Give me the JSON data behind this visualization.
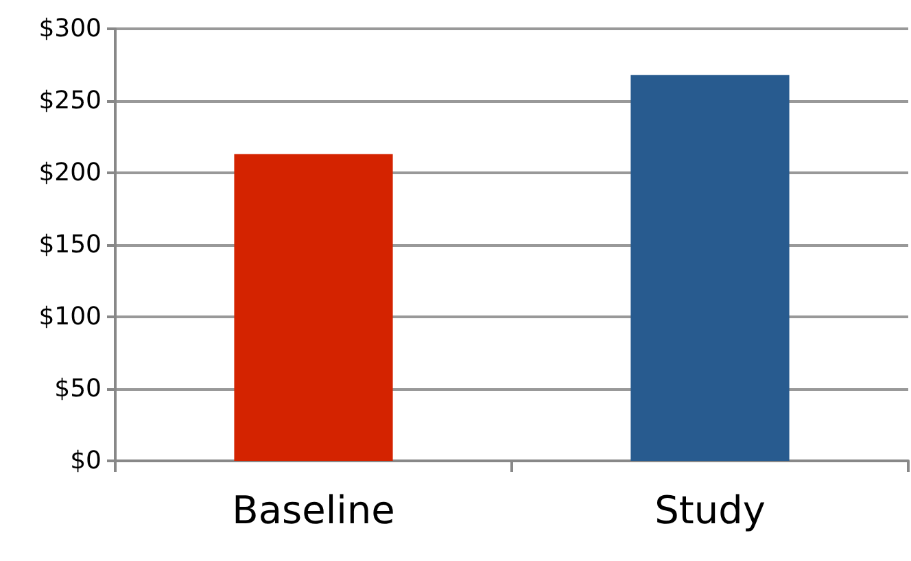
{
  "chart_data": {
    "type": "bar",
    "categories": [
      "Baseline",
      "Study"
    ],
    "values": [
      213,
      268
    ],
    "colors": [
      "#d42300",
      "#285b8f"
    ],
    "ylim": [
      0,
      300
    ],
    "yticks": [
      {
        "value": 0,
        "label": "$0"
      },
      {
        "value": 50,
        "label": "$50"
      },
      {
        "value": 100,
        "label": "$100"
      },
      {
        "value": 150,
        "label": "$150"
      },
      {
        "value": 200,
        "label": "$200"
      },
      {
        "value": 250,
        "label": "$250"
      },
      {
        "value": 300,
        "label": "$300"
      }
    ],
    "grid": "y"
  }
}
